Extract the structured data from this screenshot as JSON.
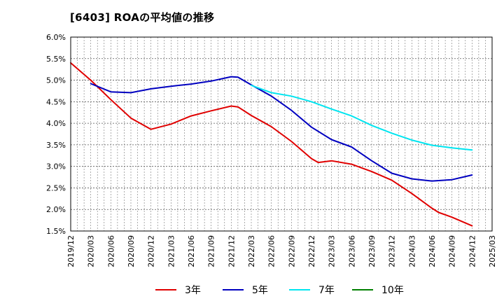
{
  "chart_data": {
    "type": "line",
    "title": "[6403]  ROAの平均値の推移",
    "ylim": [
      1.5,
      6.0
    ],
    "y_ticks": [
      "1.5%",
      "2.0%",
      "2.5%",
      "3.0%",
      "3.5%",
      "4.0%",
      "4.5%",
      "5.0%",
      "5.5%",
      "6.0%"
    ],
    "y_tick_values": [
      1.5,
      2.0,
      2.5,
      3.0,
      3.5,
      4.0,
      4.5,
      5.0,
      5.5,
      6.0
    ],
    "x_ticks": [
      "2019/12",
      "2020/03",
      "2020/06",
      "2020/09",
      "2020/12",
      "2021/03",
      "2021/06",
      "2021/09",
      "2021/12",
      "2022/03",
      "2022/06",
      "2022/09",
      "2022/12",
      "2023/03",
      "2023/06",
      "2023/09",
      "2023/12",
      "2024/03",
      "2024/06",
      "2024/09",
      "2024/12",
      "2025/03"
    ],
    "grid": true,
    "legend_position": "bottom",
    "series": [
      {
        "name": "3年",
        "color": "#e00000",
        "x": [
          "2019/12",
          "2020/03",
          "2020/06",
          "2020/09",
          "2020/12",
          "2021/03",
          "2021/06",
          "2021/09",
          "2021/12",
          "2022/01",
          "2022/03",
          "2022/06",
          "2022/09",
          "2022/12",
          "2023/01",
          "2023/03",
          "2023/06",
          "2023/09",
          "2023/12",
          "2024/03",
          "2024/06",
          "2024/07",
          "2024/09",
          "2024/12"
        ],
        "values": [
          5.4,
          5.0,
          4.55,
          4.12,
          3.86,
          3.98,
          4.17,
          4.29,
          4.4,
          4.38,
          4.18,
          3.92,
          3.58,
          3.18,
          3.09,
          3.13,
          3.05,
          2.88,
          2.68,
          2.37,
          2.03,
          1.93,
          1.82,
          1.62
        ]
      },
      {
        "name": "5年",
        "color": "#0000c0",
        "x": [
          "2020/03",
          "2020/06",
          "2020/09",
          "2020/12",
          "2021/03",
          "2021/06",
          "2021/09",
          "2021/12",
          "2022/01",
          "2022/03",
          "2022/06",
          "2022/09",
          "2022/12",
          "2023/03",
          "2023/06",
          "2023/09",
          "2023/12",
          "2024/03",
          "2024/06",
          "2024/09",
          "2024/12"
        ],
        "values": [
          4.92,
          4.73,
          4.71,
          4.8,
          4.86,
          4.91,
          4.98,
          5.08,
          5.07,
          4.89,
          4.63,
          4.3,
          3.91,
          3.62,
          3.45,
          3.13,
          2.84,
          2.71,
          2.66,
          2.69,
          2.8
        ]
      },
      {
        "name": "7年",
        "color": "#00e5f0",
        "x": [
          "2022/03",
          "2022/06",
          "2022/09",
          "2022/12",
          "2023/03",
          "2023/06",
          "2023/09",
          "2023/12",
          "2024/03",
          "2024/06",
          "2024/09",
          "2024/12"
        ],
        "values": [
          4.88,
          4.71,
          4.63,
          4.5,
          4.33,
          4.17,
          3.95,
          3.77,
          3.61,
          3.49,
          3.43,
          3.38
        ]
      },
      {
        "name": "10年",
        "color": "#008000",
        "x": [],
        "values": []
      }
    ]
  }
}
